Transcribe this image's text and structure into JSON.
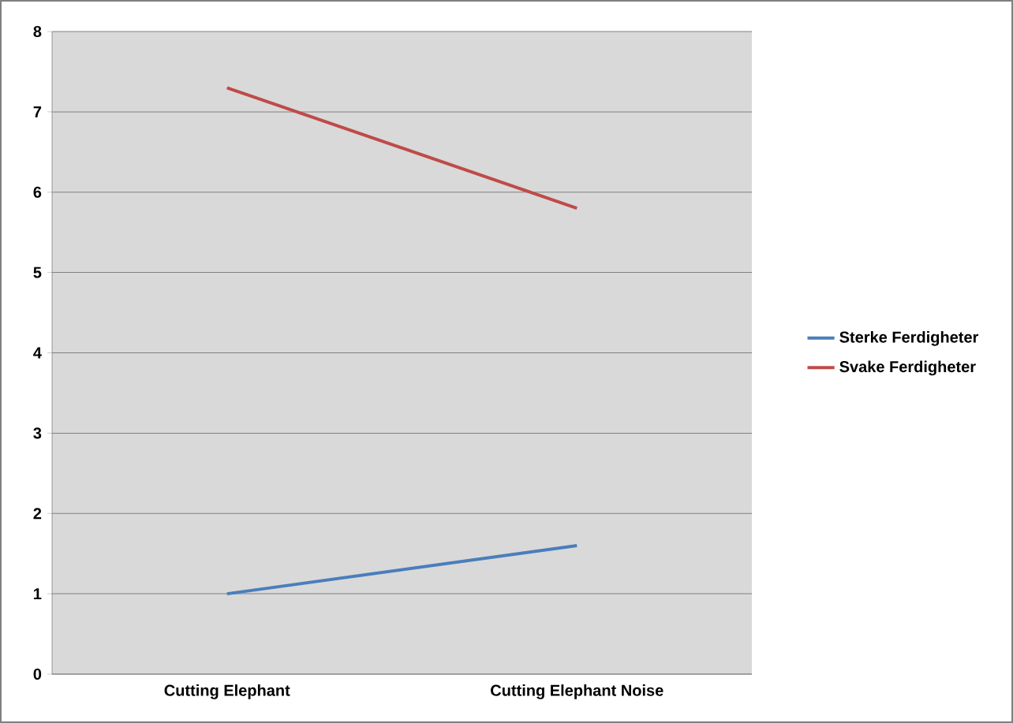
{
  "chart_data": {
    "type": "line",
    "categories": [
      "Cutting Elephant",
      "Cutting Elephant Noise"
    ],
    "series": [
      {
        "name": "Sterke Ferdigheter",
        "color": "#4a7ebb",
        "values": [
          1.0,
          1.6
        ]
      },
      {
        "name": "Svake Ferdigheter",
        "color": "#be4b48",
        "values": [
          7.3,
          5.8
        ]
      }
    ],
    "ylim": [
      0,
      8
    ],
    "yticks": [
      0,
      1,
      2,
      3,
      4,
      5,
      6,
      7,
      8
    ],
    "grid": "y",
    "legend": "right",
    "marker": "none",
    "line_style": "solid"
  }
}
